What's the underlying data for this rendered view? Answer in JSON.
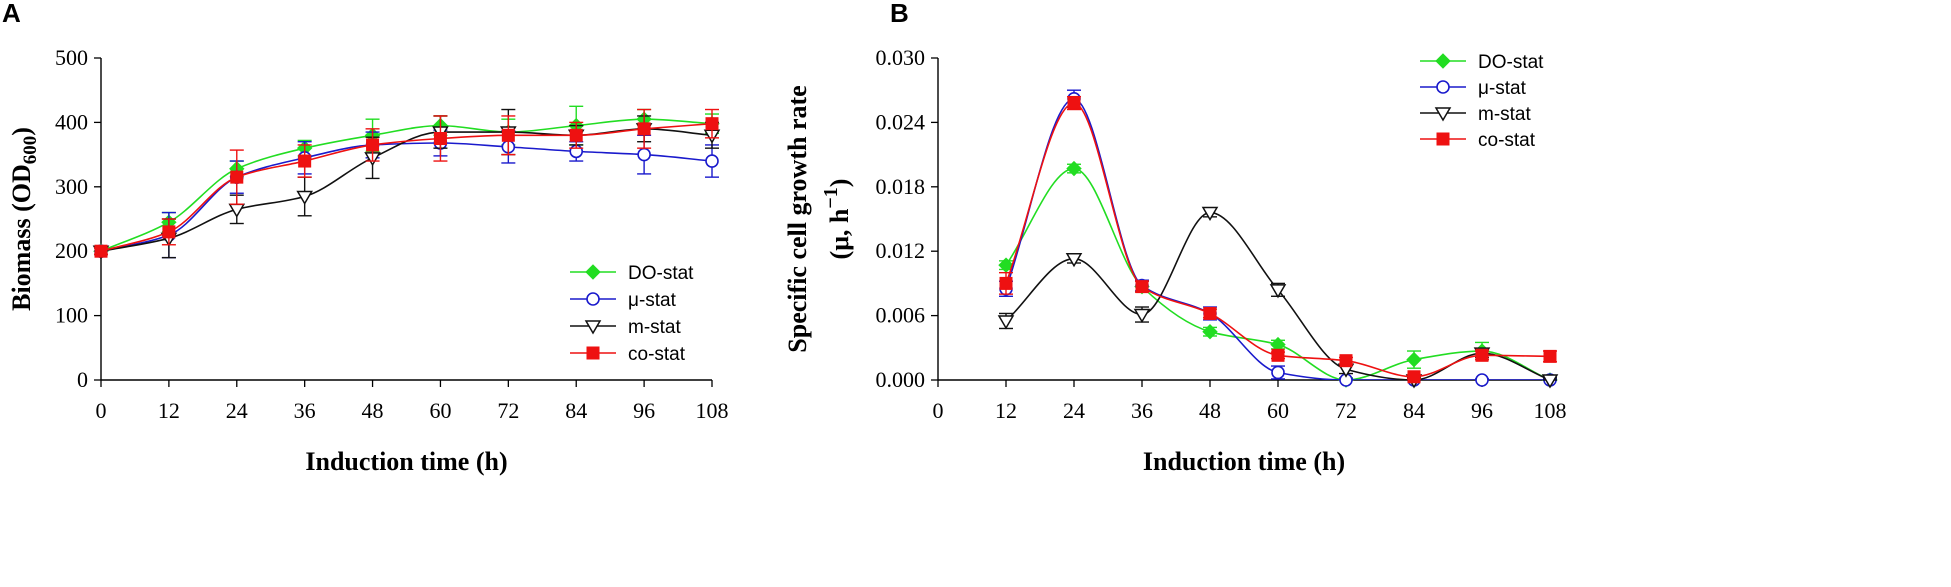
{
  "chart_data": [
    {
      "type": "line",
      "panel_label": "A",
      "title": "",
      "xlabel": "Induction time (h)",
      "ylabel": "Biomass (OD",
      "ylabel_sub": "600",
      "ylabel_end": ")",
      "xlim": [
        0,
        108
      ],
      "ylim": [
        0,
        500
      ],
      "xticks": [
        0,
        12,
        24,
        36,
        48,
        60,
        72,
        84,
        96,
        108
      ],
      "yticks": [
        0,
        100,
        200,
        300,
        400,
        500
      ],
      "ytick_labels": [
        "0",
        "100",
        "200",
        "300",
        "400",
        "500"
      ],
      "legend_position": "bottom-right",
      "series": [
        {
          "name": "DO-stat",
          "color": "#22dd22",
          "marker": "diamond",
          "x": [
            0,
            12,
            24,
            36,
            48,
            60,
            72,
            84,
            96,
            108
          ],
          "y": [
            200,
            245,
            328,
            360,
            380,
            395,
            385,
            395,
            405,
            398
          ],
          "err": [
            5,
            15,
            12,
            12,
            25,
            15,
            20,
            30,
            15,
            15
          ]
        },
        {
          "name": "μ-stat",
          "color": "#1a1acc",
          "marker": "circle",
          "x": [
            0,
            12,
            24,
            36,
            48,
            60,
            72,
            84,
            96,
            108
          ],
          "y": [
            200,
            225,
            315,
            345,
            365,
            368,
            362,
            355,
            350,
            340
          ],
          "err": [
            5,
            35,
            25,
            25,
            20,
            20,
            25,
            15,
            30,
            25
          ]
        },
        {
          "name": "m-stat",
          "color": "#111111",
          "marker": "triangle-down",
          "x": [
            0,
            12,
            24,
            36,
            48,
            60,
            72,
            84,
            96,
            108
          ],
          "y": [
            200,
            220,
            265,
            285,
            345,
            385,
            385,
            380,
            390,
            380
          ],
          "err": [
            5,
            30,
            22,
            30,
            32,
            25,
            35,
            15,
            20,
            20
          ]
        },
        {
          "name": "co-stat",
          "color": "#ee1111",
          "marker": "square",
          "x": [
            0,
            12,
            24,
            36,
            48,
            60,
            72,
            84,
            96,
            108
          ],
          "y": [
            200,
            230,
            315,
            340,
            365,
            375,
            380,
            380,
            390,
            398
          ],
          "err": [
            5,
            20,
            42,
            25,
            25,
            35,
            30,
            20,
            30,
            22
          ]
        }
      ]
    },
    {
      "type": "line",
      "panel_label": "B",
      "title": "",
      "xlabel": "Induction time (h)",
      "ylabel_line1": "Specific cell growth rate",
      "ylabel_line2": "(μ, h",
      "ylabel_sup": "−1",
      "ylabel_end": ")",
      "xlim": [
        0,
        108
      ],
      "ylim": [
        0,
        0.03
      ],
      "xticks": [
        0,
        12,
        24,
        36,
        48,
        60,
        72,
        84,
        96,
        108
      ],
      "yticks": [
        0,
        0.006,
        0.012,
        0.018,
        0.024,
        0.03
      ],
      "ytick_labels": [
        "0.000",
        "0.006",
        "0.012",
        "0.018",
        "0.024",
        "0.030"
      ],
      "legend_position": "top-right",
      "series": [
        {
          "name": "DO-stat",
          "color": "#22dd22",
          "marker": "diamond",
          "x": [
            12,
            24,
            36,
            48,
            60,
            72,
            84,
            96,
            108
          ],
          "y": [
            0.0107,
            0.0197,
            0.0087,
            0.0045,
            0.0033,
            0.0,
            0.0019,
            0.0027,
            0.0
          ],
          "err": [
            0.0004,
            0.0004,
            0.0005,
            0.0004,
            0.0004,
            0.0002,
            0.0008,
            0.0008,
            0.0002
          ]
        },
        {
          "name": "μ-stat",
          "color": "#1a1acc",
          "marker": "circle",
          "x": [
            12,
            24,
            36,
            48,
            60,
            72,
            84,
            96,
            108
          ],
          "y": [
            0.0085,
            0.0262,
            0.0088,
            0.0062,
            0.0007,
            0.0,
            0.0,
            0.0,
            0.0
          ],
          "err": [
            0.0007,
            0.0008,
            0.0005,
            0.0006,
            0.0006,
            0.0001,
            0.0001,
            0.0001,
            0.0001
          ]
        },
        {
          "name": "m-stat",
          "color": "#111111",
          "marker": "triangle-down",
          "x": [
            12,
            24,
            36,
            48,
            60,
            72,
            84,
            96,
            108
          ],
          "y": [
            0.0055,
            0.0113,
            0.0061,
            0.0156,
            0.0084,
            0.001,
            0.0,
            0.0025,
            0.0
          ],
          "err": [
            0.0007,
            0.0004,
            0.0007,
            0.0004,
            0.0006,
            0.0004,
            0.0002,
            0.0004,
            0.0002
          ]
        },
        {
          "name": "co-stat",
          "color": "#ee1111",
          "marker": "square",
          "x": [
            12,
            24,
            36,
            48,
            60,
            72,
            84,
            96,
            108
          ],
          "y": [
            0.009,
            0.0258,
            0.0087,
            0.0062,
            0.0023,
            0.0018,
            0.0003,
            0.0023,
            0.0022
          ],
          "err": [
            0.001,
            0.0006,
            0.0005,
            0.0004,
            0.0003,
            0.0003,
            0.0002,
            0.0004,
            0.0005
          ]
        }
      ]
    }
  ]
}
